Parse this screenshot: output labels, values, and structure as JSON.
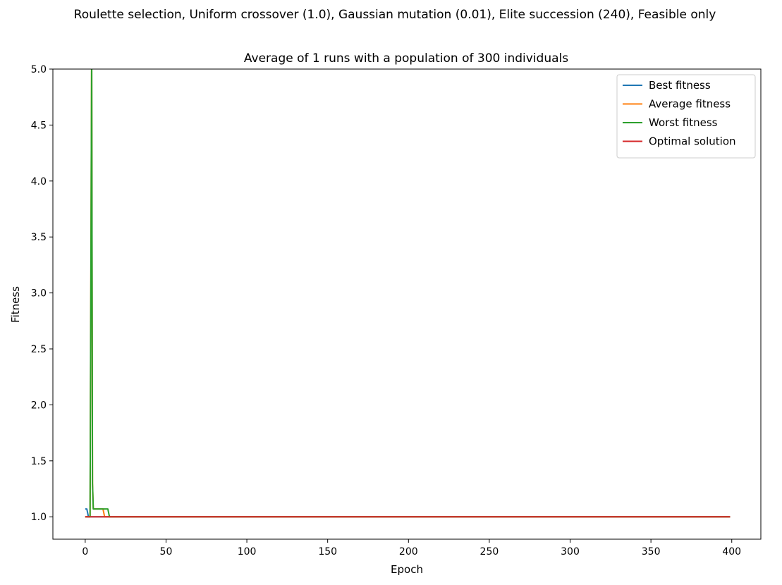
{
  "chart_data": {
    "type": "line",
    "suptitle": "Roulette selection, Uniform crossover (1.0), Gaussian mutation (0.01), Elite succession (240), Feasible only",
    "title": "Average of 1 runs with a population of 300 individuals",
    "xlabel": "Epoch",
    "ylabel": "Fitness",
    "xlim": [
      -20,
      418
    ],
    "ylim": [
      0.8,
      5.0
    ],
    "xticks": [
      0,
      50,
      100,
      150,
      200,
      250,
      300,
      350,
      400
    ],
    "yticks": [
      1.0,
      1.5,
      2.0,
      2.5,
      3.0,
      3.5,
      4.0,
      4.5,
      5.0
    ],
    "xtick_labels": [
      "0",
      "50",
      "100",
      "150",
      "200",
      "250",
      "300",
      "350",
      "400"
    ],
    "ytick_labels": [
      "1.0",
      "1.5",
      "2.0",
      "2.5",
      "3.0",
      "3.5",
      "4.0",
      "4.5",
      "5.0"
    ],
    "grid": false,
    "legend_position": "top-right",
    "series": [
      {
        "name": "Best fitness",
        "color": "#1f77b4",
        "points": [
          [
            0,
            1.07
          ],
          [
            1,
            1.07
          ],
          [
            2,
            1.0
          ],
          [
            399,
            1.0
          ]
        ]
      },
      {
        "name": "Average fitness",
        "color": "#ff7f0e",
        "points": [
          [
            0,
            1.0
          ],
          [
            3,
            1.0
          ],
          [
            4,
            5.2
          ],
          [
            4.5,
            1.3
          ],
          [
            5,
            1.07
          ],
          [
            11,
            1.07
          ],
          [
            12,
            1.0
          ],
          [
            399,
            1.0
          ]
        ]
      },
      {
        "name": "Worst fitness",
        "color": "#2ca02c",
        "points": [
          [
            0,
            1.0
          ],
          [
            3,
            1.0
          ],
          [
            4,
            5.2
          ],
          [
            4.5,
            1.3
          ],
          [
            5,
            1.07
          ],
          [
            14,
            1.07
          ],
          [
            15,
            1.0
          ],
          [
            399,
            1.0
          ]
        ]
      },
      {
        "name": "Optimal solution",
        "color": "#d62728",
        "points": [
          [
            0,
            1.0
          ],
          [
            399,
            1.0
          ]
        ]
      }
    ]
  }
}
